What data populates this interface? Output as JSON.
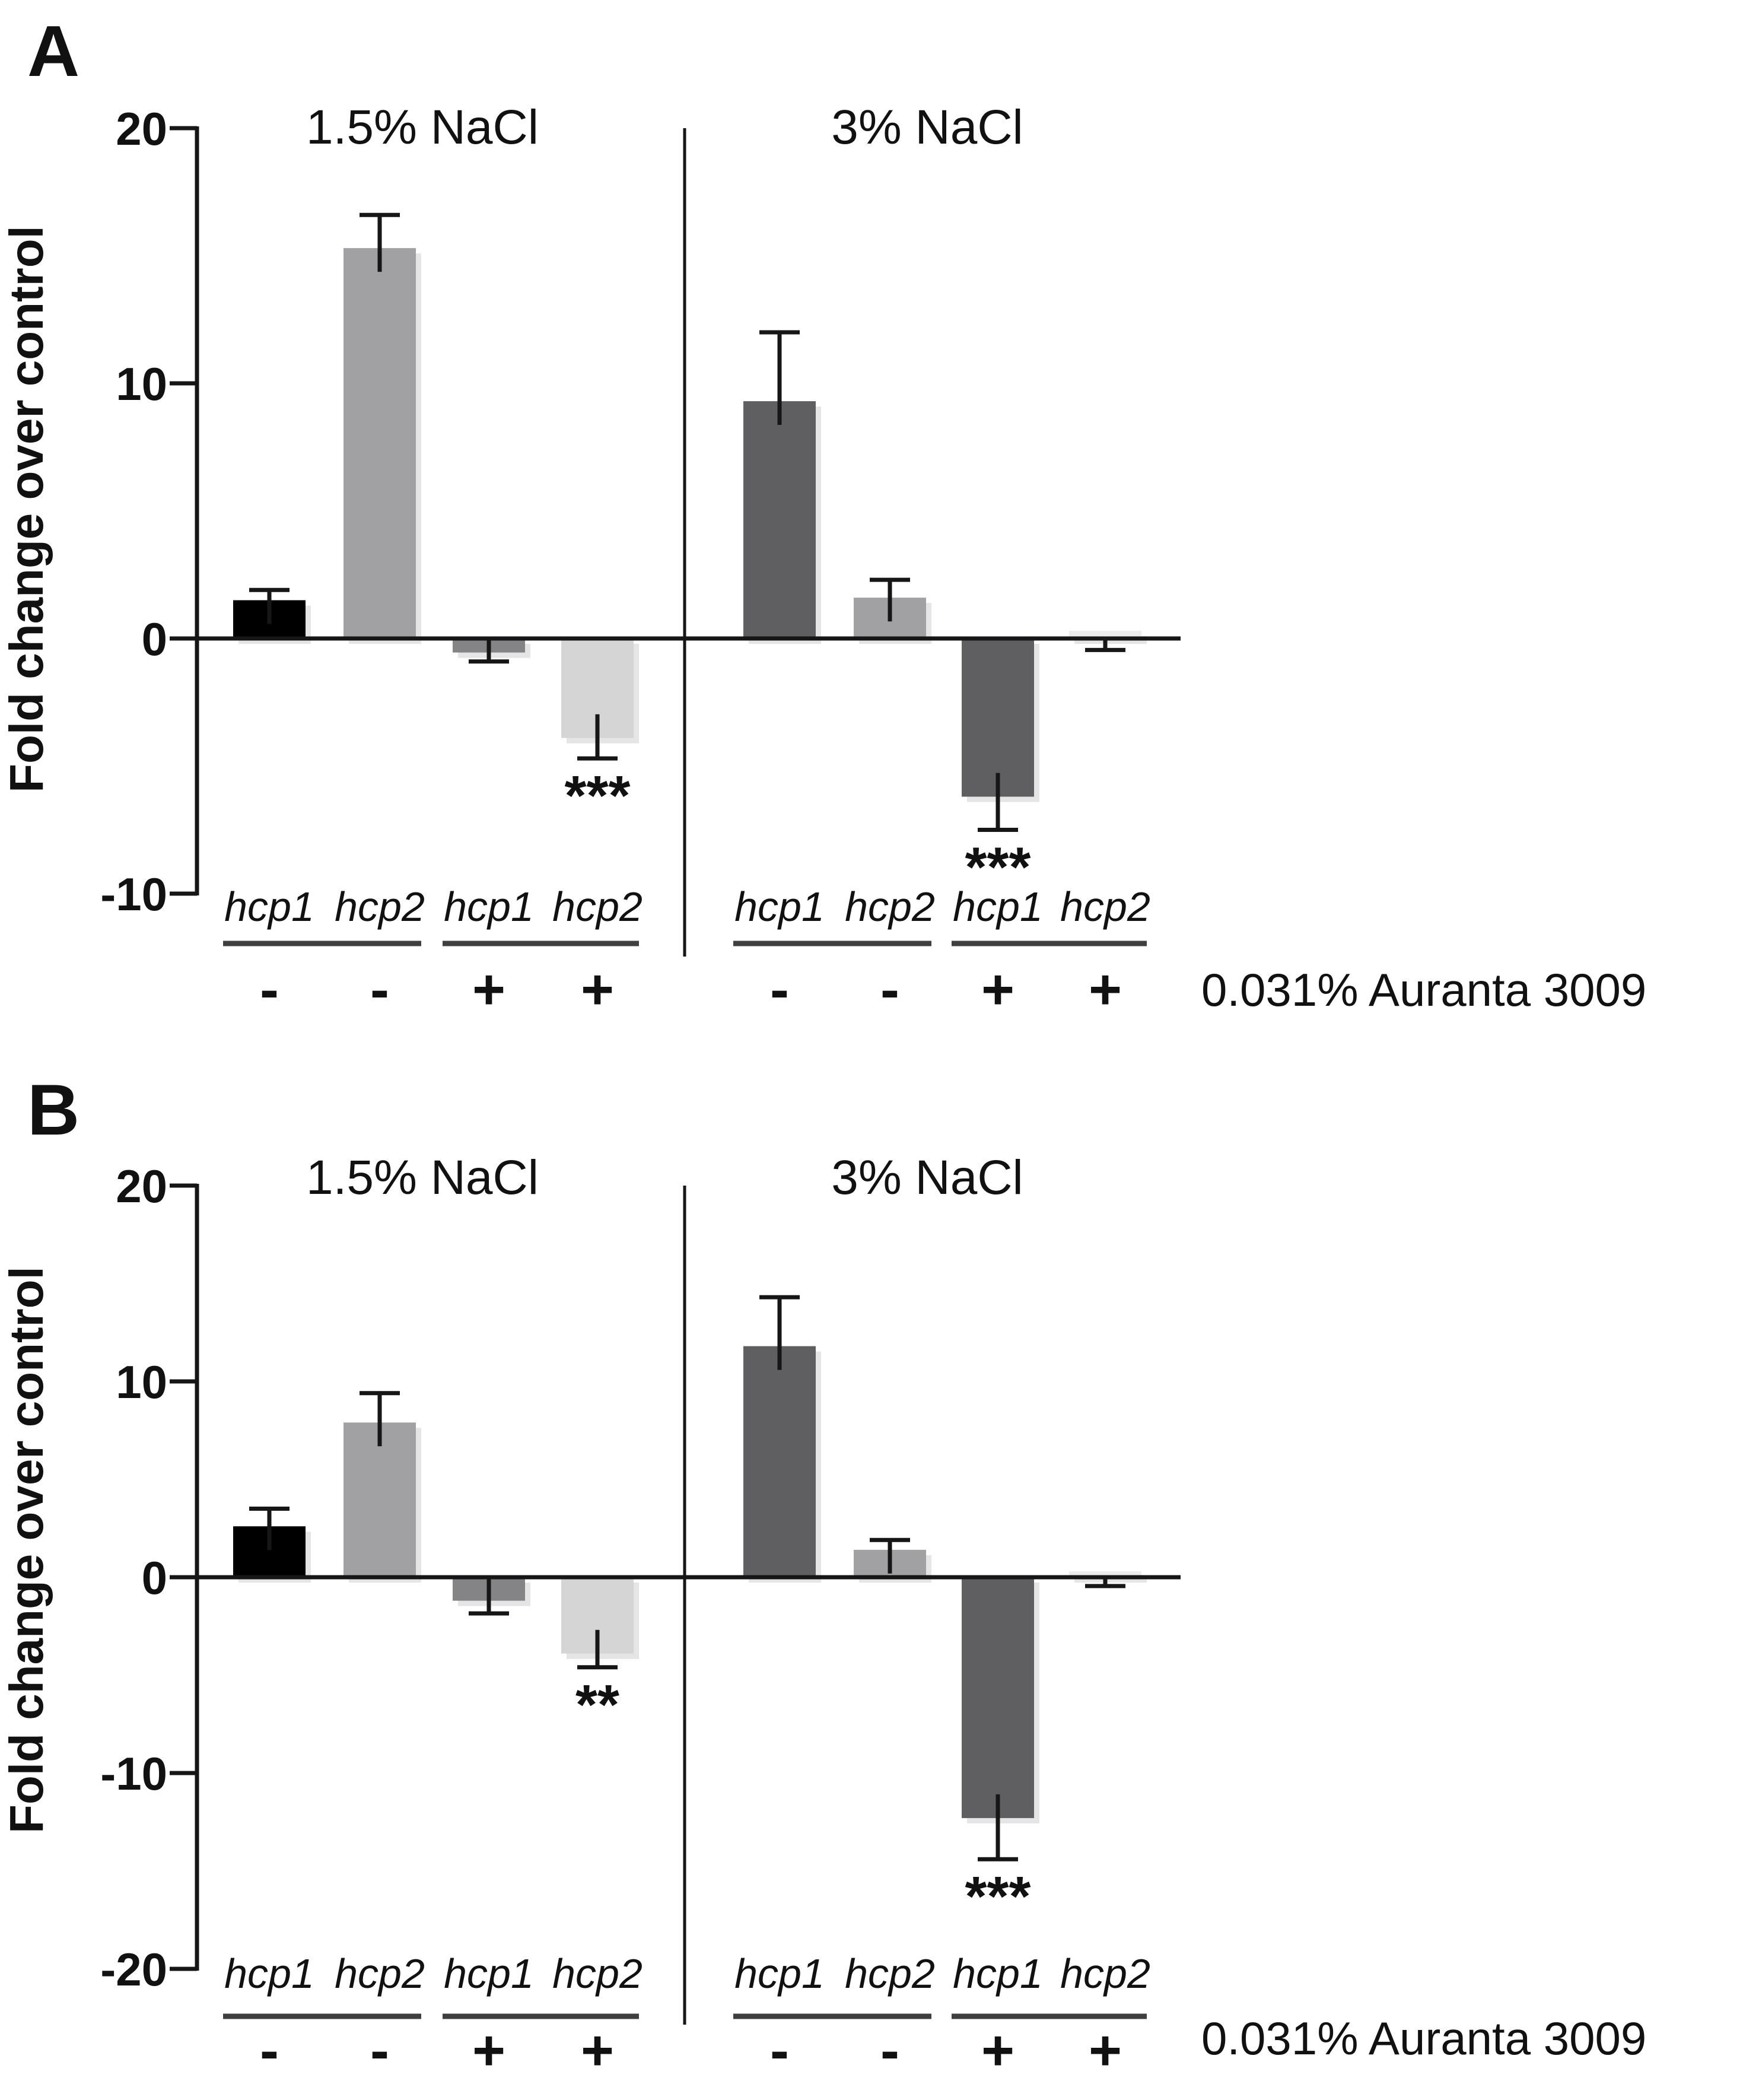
{
  "figure": {
    "background": "#ffffff",
    "description": "Two-panel bar figure (A, B) of hcp1/hcp2 fold change under NaCl with or without Auranta 3009"
  },
  "chart_data": [
    {
      "type": "bar",
      "panel_label": "A",
      "ylabel": "Fold change over control",
      "ylim": [
        -10,
        20
      ],
      "yticks": [
        20,
        10,
        0,
        -10
      ],
      "grid": false,
      "legend": "none",
      "right_label": "0.031% Auranta 3009",
      "groups": [
        {
          "title": "1.5% NaCl",
          "bars": [
            {
              "gene": "hcp1",
              "auranta": "-",
              "value": 1.5,
              "error": 0.4,
              "color": "#000000"
            },
            {
              "gene": "hcp2",
              "auranta": "-",
              "value": 15.3,
              "error": 1.3,
              "color": "#a1a1a4"
            },
            {
              "gene": "hcp1",
              "auranta": "+",
              "value": -0.55,
              "error": 0.35,
              "color": "#848487"
            },
            {
              "gene": "hcp2",
              "auranta": "+",
              "value": -3.9,
              "error": 0.8,
              "color": "#d5d5d5",
              "sig": "***"
            }
          ]
        },
        {
          "title": "3% NaCl",
          "bars": [
            {
              "gene": "hcp1",
              "auranta": "-",
              "value": 9.3,
              "error": 2.7,
              "color": "#5f5f61"
            },
            {
              "gene": "hcp2",
              "auranta": "-",
              "value": 1.6,
              "error": 0.7,
              "color": "#a1a1a4"
            },
            {
              "gene": "hcp1",
              "auranta": "+",
              "value": -6.2,
              "error": 1.3,
              "color": "#5f5f61",
              "sig": "***"
            },
            {
              "gene": "hcp2",
              "auranta": "+",
              "value": 0.3,
              "error": 0.75,
              "error_dir": "down",
              "color": "#ececec"
            }
          ]
        }
      ]
    },
    {
      "type": "bar",
      "panel_label": "B",
      "ylabel": "Fold change over control",
      "ylim": [
        -20,
        20
      ],
      "yticks": [
        20,
        10,
        0,
        -10,
        -20
      ],
      "grid": false,
      "legend": "none",
      "right_label": "0.031% Auranta 3009",
      "groups": [
        {
          "title": "1.5% NaCl",
          "bars": [
            {
              "gene": "hcp1",
              "auranta": "-",
              "value": 2.6,
              "error": 0.9,
              "color": "#000000"
            },
            {
              "gene": "hcp2",
              "auranta": "-",
              "value": 7.9,
              "error": 1.5,
              "color": "#a1a1a4"
            },
            {
              "gene": "hcp1",
              "auranta": "+",
              "value": -1.2,
              "error": 0.65,
              "color": "#848487"
            },
            {
              "gene": "hcp2",
              "auranta": "+",
              "value": -3.9,
              "error": 0.7,
              "color": "#d5d5d5",
              "sig": "**"
            }
          ]
        },
        {
          "title": "3% NaCl",
          "bars": [
            {
              "gene": "hcp1",
              "auranta": "-",
              "value": 11.8,
              "error": 2.5,
              "color": "#5f5f61"
            },
            {
              "gene": "hcp2",
              "auranta": "-",
              "value": 1.4,
              "error": 0.5,
              "color": "#a1a1a4"
            },
            {
              "gene": "hcp1",
              "auranta": "+",
              "value": -12.3,
              "error": 2.1,
              "color": "#5f5f61",
              "sig": "***"
            },
            {
              "gene": "hcp2",
              "auranta": "+",
              "value": 0.3,
              "error": 0.75,
              "error_dir": "down",
              "color": "#ececec"
            }
          ]
        }
      ]
    }
  ]
}
